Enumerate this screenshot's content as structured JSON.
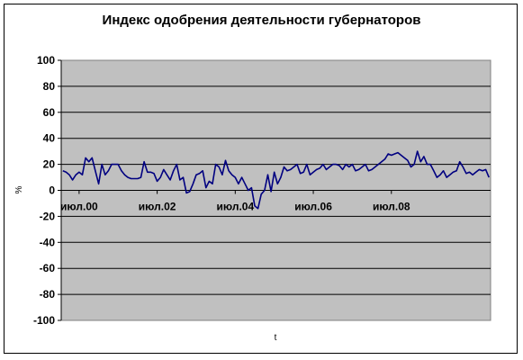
{
  "chart_data": {
    "type": "line",
    "title": "Индекс одобрения деятельности губернаторов",
    "xlabel": "t",
    "ylabel": "%",
    "ylim": [
      -100,
      100
    ],
    "yticks": [
      100,
      80,
      60,
      40,
      20,
      0,
      -20,
      -40,
      -60,
      -80,
      -100
    ],
    "xtick_labels": [
      "июл.00",
      "июл.02",
      "июл.04",
      "июл.06",
      "июл.08"
    ],
    "grid": true,
    "legend": "none",
    "colors": {
      "plot_bg": "#c0c0c0",
      "line": "#000080",
      "grid": "#000000"
    },
    "series": [
      {
        "values": [
          15,
          14,
          12,
          8,
          12,
          14,
          12,
          25,
          22,
          25,
          15,
          5,
          20,
          12,
          15,
          20,
          20,
          20,
          15,
          12,
          10,
          9,
          9,
          9,
          10,
          22,
          14,
          14,
          13,
          7,
          10,
          16,
          12,
          8,
          15,
          20,
          8,
          10,
          -2,
          -1,
          5,
          12,
          13,
          15,
          2,
          7,
          5,
          20,
          18,
          12,
          23,
          15,
          12,
          10,
          5,
          10,
          5,
          0,
          2,
          -12,
          -14,
          -3,
          0,
          12,
          -1,
          14,
          5,
          10,
          18,
          15,
          16,
          18,
          20,
          13,
          14,
          20,
          12,
          14,
          16,
          17,
          20,
          16,
          18,
          20,
          20,
          19,
          16,
          20,
          18,
          20,
          15,
          16,
          18,
          20,
          15,
          16,
          18,
          20,
          22,
          24,
          28,
          27,
          28,
          29,
          27,
          25,
          23,
          18,
          20,
          30,
          22,
          26,
          20,
          20,
          15,
          10,
          12,
          15,
          10,
          12,
          14,
          15,
          22,
          18,
          13,
          14,
          12,
          14,
          16,
          15,
          16,
          10
        ]
      }
    ]
  }
}
